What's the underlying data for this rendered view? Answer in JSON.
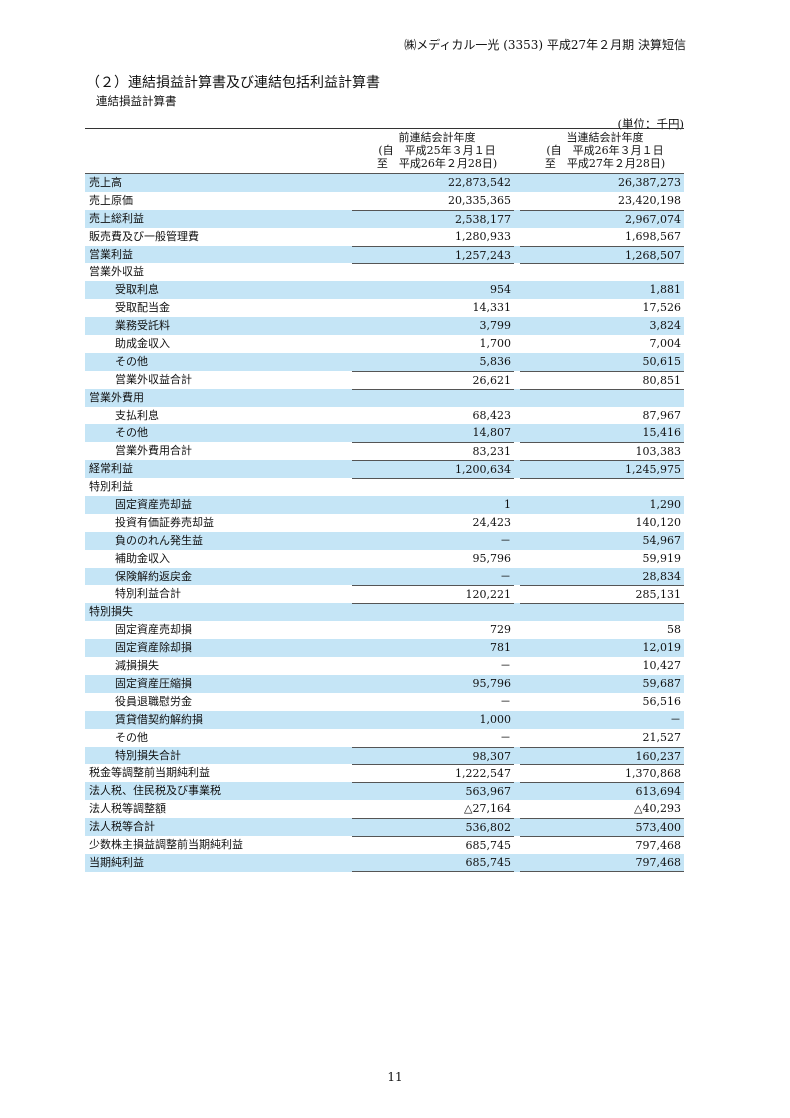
{
  "header": "㈱メディカル一光 (3353) 平成27年２月期 決算短信",
  "section_title": "（２）連結損益計算書及び連結包括利益計算書",
  "subtitle": "連結損益計算書",
  "unit": "(単位：千円)",
  "columns": [
    {
      "l1": "前連結会計年度",
      "l2": "(自　平成25年３月１日",
      "l3": "至　平成26年２月28日)"
    },
    {
      "l1": "当連結会計年度",
      "l2": "(自　平成26年３月１日",
      "l3": "至　平成27年２月28日)"
    }
  ],
  "rows": [
    {
      "label": "売上高",
      "prev": "22,873,542",
      "curr": "26,387,273",
      "indent": false,
      "top": false
    },
    {
      "label": "売上原価",
      "prev": "20,335,365",
      "curr": "23,420,198",
      "indent": false,
      "top": false
    },
    {
      "label": "売上総利益",
      "prev": "2,538,177",
      "curr": "2,967,074",
      "indent": false,
      "top": true
    },
    {
      "label": "販売費及び一般管理費",
      "prev": "1,280,933",
      "curr": "1,698,567",
      "indent": false,
      "top": false
    },
    {
      "label": "営業利益",
      "prev": "1,257,243",
      "curr": "1,268,507",
      "indent": false,
      "top": true
    },
    {
      "label": "営業外収益",
      "prev": "",
      "curr": "",
      "indent": false,
      "top": true
    },
    {
      "label": "受取利息",
      "prev": "954",
      "curr": "1,881",
      "indent": true,
      "top": false
    },
    {
      "label": "受取配当金",
      "prev": "14,331",
      "curr": "17,526",
      "indent": true,
      "top": false
    },
    {
      "label": "業務受託料",
      "prev": "3,799",
      "curr": "3,824",
      "indent": true,
      "top": false
    },
    {
      "label": "助成金収入",
      "prev": "1,700",
      "curr": "7,004",
      "indent": true,
      "top": false
    },
    {
      "label": "その他",
      "prev": "5,836",
      "curr": "50,615",
      "indent": true,
      "top": false
    },
    {
      "label": "営業外収益合計",
      "prev": "26,621",
      "curr": "80,851",
      "indent": true,
      "top": true
    },
    {
      "label": "営業外費用",
      "prev": "",
      "curr": "",
      "indent": false,
      "top": true
    },
    {
      "label": "支払利息",
      "prev": "68,423",
      "curr": "87,967",
      "indent": true,
      "top": false
    },
    {
      "label": "その他",
      "prev": "14,807",
      "curr": "15,416",
      "indent": true,
      "top": false
    },
    {
      "label": "営業外費用合計",
      "prev": "83,231",
      "curr": "103,383",
      "indent": true,
      "top": true
    },
    {
      "label": "経常利益",
      "prev": "1,200,634",
      "curr": "1,245,975",
      "indent": false,
      "top": true
    },
    {
      "label": "特別利益",
      "prev": "",
      "curr": "",
      "indent": false,
      "top": true
    },
    {
      "label": "固定資産売却益",
      "prev": "1",
      "curr": "1,290",
      "indent": true,
      "top": false
    },
    {
      "label": "投資有価証券売却益",
      "prev": "24,423",
      "curr": "140,120",
      "indent": true,
      "top": false
    },
    {
      "label": "負ののれん発生益",
      "prev": "－",
      "curr": "54,967",
      "indent": true,
      "top": false
    },
    {
      "label": "補助金収入",
      "prev": "95,796",
      "curr": "59,919",
      "indent": true,
      "top": false
    },
    {
      "label": "保険解約返戻金",
      "prev": "－",
      "curr": "28,834",
      "indent": true,
      "top": false
    },
    {
      "label": "特別利益合計",
      "prev": "120,221",
      "curr": "285,131",
      "indent": true,
      "top": true
    },
    {
      "label": "特別損失",
      "prev": "",
      "curr": "",
      "indent": false,
      "top": true
    },
    {
      "label": "固定資産売却損",
      "prev": "729",
      "curr": "58",
      "indent": true,
      "top": false
    },
    {
      "label": "固定資産除却損",
      "prev": "781",
      "curr": "12,019",
      "indent": true,
      "top": false
    },
    {
      "label": "減損損失",
      "prev": "－",
      "curr": "10,427",
      "indent": true,
      "top": false
    },
    {
      "label": "固定資産圧縮損",
      "prev": "95,796",
      "curr": "59,687",
      "indent": true,
      "top": false
    },
    {
      "label": "役員退職慰労金",
      "prev": "－",
      "curr": "56,516",
      "indent": true,
      "top": false
    },
    {
      "label": "賃貸借契約解約損",
      "prev": "1,000",
      "curr": "－",
      "indent": true,
      "top": false
    },
    {
      "label": "その他",
      "prev": "－",
      "curr": "21,527",
      "indent": true,
      "top": false
    },
    {
      "label": "特別損失合計",
      "prev": "98,307",
      "curr": "160,237",
      "indent": true,
      "top": true
    },
    {
      "label": "税金等調整前当期純利益",
      "prev": "1,222,547",
      "curr": "1,370,868",
      "indent": false,
      "top": true
    },
    {
      "label": "法人税、住民税及び事業税",
      "prev": "563,967",
      "curr": "613,694",
      "indent": false,
      "top": true
    },
    {
      "label": "法人税等調整額",
      "prev": "△27,164",
      "curr": "△40,293",
      "indent": false,
      "top": false
    },
    {
      "label": "法人税等合計",
      "prev": "536,802",
      "curr": "573,400",
      "indent": false,
      "top": true
    },
    {
      "label": "少数株主損益調整前当期純利益",
      "prev": "685,745",
      "curr": "797,468",
      "indent": false,
      "top": true
    },
    {
      "label": "当期純利益",
      "prev": "685,745",
      "curr": "797,468",
      "indent": false,
      "top": false
    }
  ],
  "colors": {
    "row_shade": "#c5e5f6"
  },
  "page_number": "11"
}
